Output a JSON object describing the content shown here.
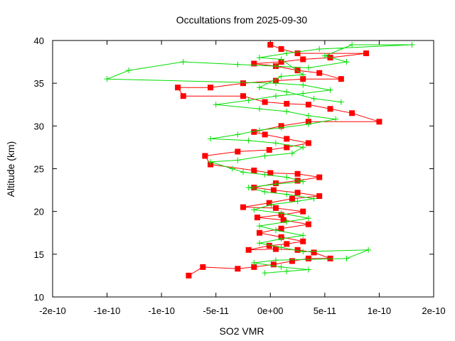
{
  "chart_data": {
    "type": "line",
    "title": "Occultations from 2025-09-30",
    "xlabel": "SO2 VMR",
    "ylabel": "Altitude (km)",
    "xlim": [
      -2e-10,
      1.5e-10
    ],
    "ylim": [
      10,
      40
    ],
    "x_ticks": [
      -2e-10,
      -1.5e-10,
      -1e-10,
      -5e-11,
      0,
      5e-11,
      1e-10,
      1.5e-10
    ],
    "x_tick_labels": [
      "-2e-10",
      "-1e-10",
      "-1e-10",
      "-5e-11",
      "0e+00",
      "5e-11",
      "1e-10",
      "2e-10"
    ],
    "y_ticks": [
      10,
      15,
      20,
      25,
      30,
      35,
      40
    ],
    "y_tick_labels": [
      "10",
      "15",
      "20",
      "25",
      "30",
      "35",
      "40"
    ],
    "grid": false,
    "legend": "none",
    "series": [
      {
        "color": "#ff0000",
        "marker": "square",
        "points": [
          [
            -7.5e-11,
            12.5
          ],
          [
            -6.2e-11,
            13.5
          ],
          [
            -3e-11,
            13.3
          ],
          [
            -1.5e-11,
            13.5
          ],
          [
            3e-12,
            13.8
          ],
          [
            2e-11,
            14.2
          ],
          [
            3.5e-11,
            14.5
          ],
          [
            5.5e-11,
            14.5
          ],
          [
            4e-11,
            15.2
          ],
          [
            2.5e-11,
            15.5
          ],
          [
            5e-12,
            15.6
          ],
          [
            -2e-11,
            15.5
          ],
          [
            -1e-12,
            16.0
          ],
          [
            1.5e-11,
            16.2
          ],
          [
            3e-11,
            16.5
          ],
          [
            1e-11,
            17.0
          ],
          [
            -1e-11,
            17.5
          ],
          [
            1e-11,
            18.0
          ],
          [
            3.5e-11,
            18.5
          ],
          [
            1.2e-11,
            19.0
          ],
          [
            -1.2e-11,
            19.3
          ],
          [
            1e-11,
            19.6
          ],
          [
            3e-11,
            20.0
          ],
          [
            5e-12,
            20.4
          ],
          [
            -2.5e-11,
            20.5
          ],
          [
            -1e-12,
            21.0
          ],
          [
            2e-11,
            21.5
          ],
          [
            4.5e-11,
            21.8
          ],
          [
            2.5e-11,
            22.2
          ],
          [
            3e-12,
            22.5
          ],
          [
            -1.5e-11,
            22.8
          ],
          [
            5e-12,
            23.3
          ],
          [
            2.5e-11,
            23.6
          ],
          [
            4.5e-11,
            24.0
          ],
          [
            2.5e-11,
            24.4
          ],
          [
            0,
            24.5
          ],
          [
            -1.5e-11,
            24.8
          ],
          [
            -5.5e-11,
            25.5
          ],
          [
            -6e-11,
            26.5
          ],
          [
            -3e-11,
            27.0
          ],
          [
            -1e-12,
            27.2
          ],
          [
            1.5e-11,
            27.5
          ],
          [
            3.5e-11,
            28.0
          ],
          [
            1.5e-11,
            28.5
          ],
          [
            -5e-12,
            29.0
          ],
          [
            -1.5e-11,
            29.3
          ],
          [
            1e-11,
            30.0
          ],
          [
            3.5e-11,
            30.5
          ],
          [
            1e-10,
            30.5
          ],
          [
            7.5e-11,
            31.5
          ],
          [
            5.5e-11,
            32.0
          ],
          [
            3.5e-11,
            32.5
          ],
          [
            1.5e-11,
            32.6
          ],
          [
            -5e-12,
            32.8
          ],
          [
            -2.5e-11,
            33.5
          ],
          [
            -8e-11,
            33.5
          ],
          [
            -8.5e-11,
            34.5
          ],
          [
            -5.5e-11,
            34.5
          ],
          [
            -2.5e-11,
            35.0
          ],
          [
            5e-12,
            35.3
          ],
          [
            3e-11,
            35.5
          ],
          [
            6.5e-11,
            35.5
          ],
          [
            4.5e-11,
            36.2
          ],
          [
            2.5e-11,
            36.5
          ],
          [
            5e-12,
            37.0
          ],
          [
            -1.5e-11,
            37.3
          ],
          [
            1e-11,
            37.5
          ],
          [
            3e-11,
            37.8
          ],
          [
            5.5e-11,
            38.0
          ],
          [
            8.8e-11,
            38.5
          ],
          [
            2.5e-11,
            38.5
          ],
          [
            1e-11,
            39.0
          ],
          [
            0,
            39.5
          ]
        ]
      },
      {
        "color": "#00dd00",
        "marker": "plus",
        "points": [
          [
            -5e-12,
            12.8
          ],
          [
            1.5e-11,
            13.0
          ],
          [
            3.5e-11,
            13.2
          ],
          [
            1e-11,
            13.5
          ],
          [
            -1.5e-11,
            14.0
          ],
          [
            5e-12,
            14.3
          ],
          [
            7e-11,
            14.5
          ],
          [
            9e-11,
            15.5
          ],
          [
            3e-11,
            15.3
          ],
          [
            1e-11,
            15.8
          ],
          [
            -1e-11,
            16.3
          ],
          [
            1e-11,
            16.8
          ],
          [
            3e-11,
            17.2
          ],
          [
            5e-12,
            17.8
          ],
          [
            -1e-11,
            18.3
          ],
          [
            1.5e-11,
            18.8
          ],
          [
            3.5e-11,
            19.2
          ],
          [
            1e-11,
            19.8
          ],
          [
            -1.5e-11,
            20.2
          ],
          [
            1e-12,
            20.8
          ],
          [
            2.5e-11,
            21.2
          ],
          [
            4e-11,
            21.5
          ],
          [
            1.5e-11,
            22.0
          ],
          [
            -5e-12,
            22.3
          ],
          [
            -2e-11,
            22.8
          ],
          [
            5e-12,
            23.2
          ],
          [
            3e-11,
            23.5
          ],
          [
            1.5e-11,
            24.0
          ],
          [
            -5e-12,
            24.3
          ],
          [
            -2.5e-11,
            24.6
          ],
          [
            -3.5e-11,
            25.0
          ],
          [
            -5.5e-11,
            25.8
          ],
          [
            -3e-11,
            26.0
          ],
          [
            -5e-12,
            26.5
          ],
          [
            2e-11,
            26.8
          ],
          [
            3e-11,
            27.5
          ],
          [
            5e-12,
            28.0
          ],
          [
            -2e-11,
            28.3
          ],
          [
            -5.5e-11,
            28.5
          ],
          [
            -3e-11,
            29.0
          ],
          [
            -1e-11,
            29.5
          ],
          [
            1e-11,
            29.8
          ],
          [
            3.5e-11,
            30.2
          ],
          [
            6e-11,
            30.8
          ],
          [
            3.5e-11,
            31.2
          ],
          [
            1.5e-11,
            31.7
          ],
          [
            -1e-11,
            32.0
          ],
          [
            -5e-11,
            32.5
          ],
          [
            -2e-11,
            33.0
          ],
          [
            5e-12,
            33.5
          ],
          [
            3e-11,
            33.8
          ],
          [
            5.5e-11,
            34.2
          ],
          [
            3e-11,
            34.8
          ],
          [
            5e-12,
            35.0
          ],
          [
            -1.5e-10,
            35.5
          ],
          [
            -1.3e-10,
            36.5
          ],
          [
            -8e-11,
            37.5
          ],
          [
            -3e-11,
            37.2
          ],
          [
            5e-12,
            37.0
          ],
          [
            3.5e-11,
            36.8
          ],
          [
            7e-11,
            37.5
          ],
          [
            5e-11,
            38.2
          ],
          [
            7.5e-11,
            39.5
          ],
          [
            1.3e-10,
            39.5
          ],
          [
            4.5e-11,
            39.0
          ],
          [
            1.5e-11,
            38.5
          ],
          [
            -1e-11,
            38.0
          ],
          [
            1e-11,
            37.8
          ],
          [
            3e-11,
            36.0
          ],
          [
            1e-11,
            35.8
          ],
          [
            -1e-11,
            34.5
          ],
          [
            1.5e-11,
            34.0
          ],
          [
            4e-11,
            33.2
          ],
          [
            6.5e-11,
            32.8
          ]
        ]
      }
    ]
  }
}
